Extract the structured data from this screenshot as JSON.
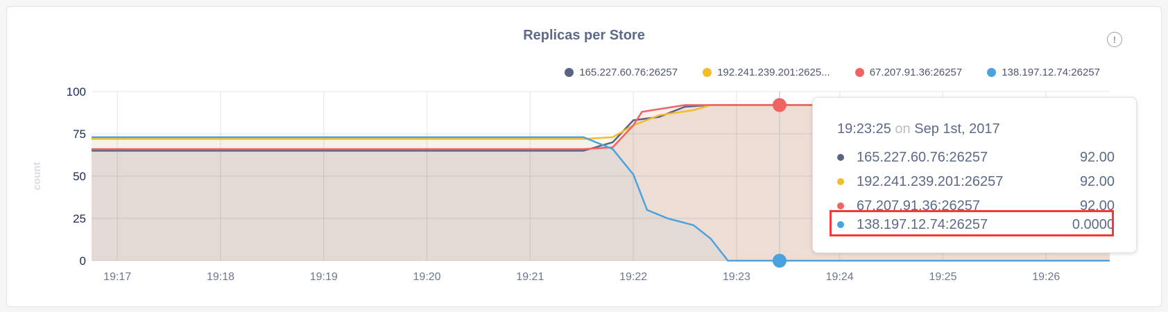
{
  "chart_data": {
    "type": "area",
    "title": "Replicas per Store",
    "ylabel": "count",
    "xlabel": "",
    "ylim": [
      0,
      100
    ],
    "yticks": [
      "0",
      "25",
      "50",
      "75",
      "100"
    ],
    "xlim": [
      "19:16:45",
      "19:26:37"
    ],
    "xticks": [
      "19:17",
      "19:18",
      "19:19",
      "19:20",
      "19:21",
      "19:22",
      "19:23",
      "19:24",
      "19:25",
      "19:26"
    ],
    "grid": true,
    "legend": "top-right",
    "series": [
      {
        "name": "165.227.60.76:26257",
        "legend_label": "165.227.60.76:26257",
        "color": "#5a6482",
        "x": [
          "19:16:45",
          "19:21:31",
          "19:21:48",
          "19:22:00",
          "19:22:15",
          "19:22:30",
          "19:22:45",
          "19:26:37"
        ],
        "y": [
          65,
          65,
          70,
          83,
          85,
          91,
          92,
          92
        ]
      },
      {
        "name": "192.241.239.201:26257",
        "legend_label": "192.241.239.201:2625...",
        "color": "#f2bc2b",
        "x": [
          "19:16:45",
          "19:21:31",
          "19:21:48",
          "19:22:00",
          "19:22:15",
          "19:22:35",
          "19:22:45",
          "19:26:37"
        ],
        "y": [
          72,
          72,
          73,
          80,
          86,
          89,
          92,
          92
        ]
      },
      {
        "name": "67.207.91.36:26257",
        "legend_label": "67.207.91.36:26257",
        "color": "#ef6461",
        "x": [
          "19:16:45",
          "19:21:31",
          "19:21:48",
          "19:22:00",
          "19:22:05",
          "19:22:30",
          "19:26:37"
        ],
        "y": [
          66,
          66,
          67,
          80,
          88,
          92,
          92
        ]
      },
      {
        "name": "138.197.12.74:26257",
        "legend_label": "138.197.12.74:26257",
        "color": "#4aa3df",
        "x": [
          "19:16:45",
          "19:21:31",
          "19:21:48",
          "19:22:00",
          "19:22:08",
          "19:22:20",
          "19:22:35",
          "19:22:45",
          "19:22:55",
          "19:26:37"
        ],
        "y": [
          73,
          73,
          66,
          51,
          30,
          25,
          21,
          13,
          0,
          0
        ]
      }
    ],
    "hover": {
      "time": "19:23:25",
      "on": "on",
      "date": "Sep 1st, 2017",
      "values": [
        "92.00",
        "92.00",
        "92.00",
        "0.0000"
      ],
      "highlighted_series": "138.197.12.74:26257"
    }
  },
  "info_icon": "info-circle-icon"
}
